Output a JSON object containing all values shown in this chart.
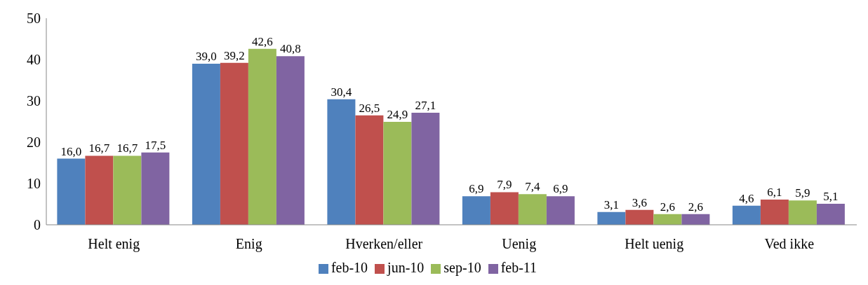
{
  "chart_data": {
    "type": "bar",
    "categories": [
      "Helt enig",
      "Enig",
      "Hverken/eller",
      "Uenig",
      "Helt uenig",
      "Ved ikke"
    ],
    "series": [
      {
        "name": "feb-10",
        "color": "#4f81bd",
        "values": [
          16.0,
          39.0,
          30.4,
          6.9,
          3.1,
          4.6
        ],
        "value_labels": [
          "16,0",
          "39,0",
          "30,4",
          "6,9",
          "3,1",
          "4,6"
        ]
      },
      {
        "name": "jun-10",
        "color": "#c0504d",
        "values": [
          16.7,
          39.2,
          26.5,
          7.9,
          3.6,
          6.1
        ],
        "value_labels": [
          "16,7",
          "39,2",
          "26,5",
          "7,9",
          "3,6",
          "6,1"
        ]
      },
      {
        "name": "sep-10",
        "color": "#9bbb59",
        "values": [
          16.7,
          42.6,
          24.9,
          7.4,
          2.6,
          5.9
        ],
        "value_labels": [
          "16,7",
          "42,6",
          "24,9",
          "7,4",
          "2,6",
          "5,9"
        ]
      },
      {
        "name": "feb-11",
        "color": "#8064a2",
        "values": [
          17.5,
          40.8,
          27.1,
          6.9,
          2.6,
          5.1
        ],
        "value_labels": [
          "17,5",
          "40,8",
          "27,1",
          "6,9",
          "2,6",
          "5,1"
        ]
      }
    ],
    "ylim": [
      0,
      50
    ],
    "yticks": [
      0,
      10,
      20,
      30,
      40,
      50
    ],
    "grid": false,
    "legend": "bottom"
  }
}
